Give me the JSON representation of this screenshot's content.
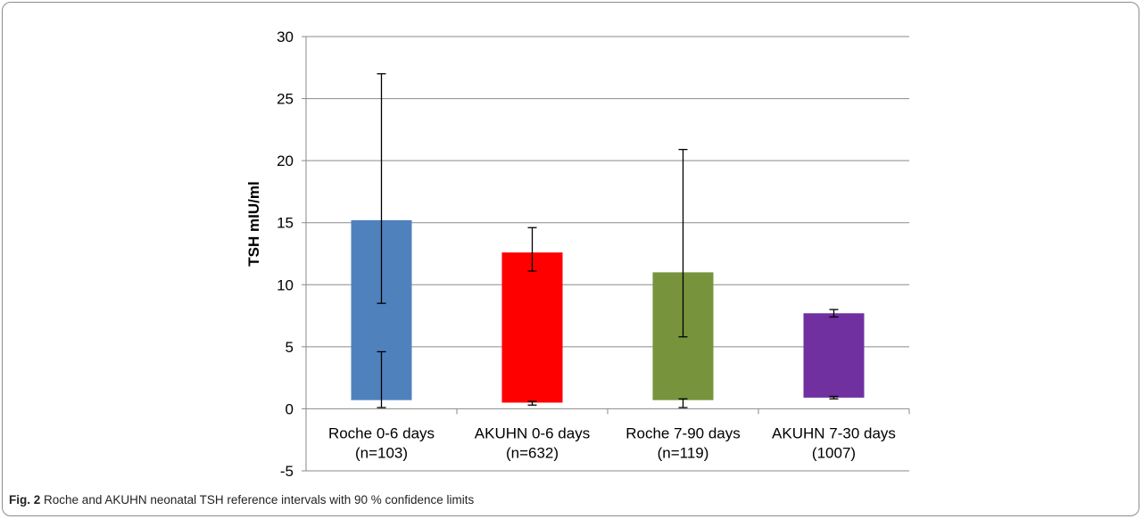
{
  "figure": {
    "label": "Fig. 2",
    "caption": "Roche and AKUHN neonatal TSH reference intervals with 90 % confidence limits"
  },
  "chart_data": {
    "type": "bar",
    "title": "",
    "xlabel": "",
    "ylabel": "TSH mIU/ml",
    "ylim": [
      -5,
      30
    ],
    "yticks": [
      -5,
      0,
      5,
      10,
      15,
      20,
      25,
      30
    ],
    "grid": true,
    "categories": [
      {
        "line1": "Roche 0-6 days",
        "line2": "(n=103)"
      },
      {
        "line1": "AKUHN 0-6 days",
        "line2": "(n=632)"
      },
      {
        "line1": "Roche 7-90 days",
        "line2": "(n=119)"
      },
      {
        "line1": "AKUHN 7-30 days",
        "line2": "(1007)"
      }
    ],
    "bars": [
      {
        "low": 0.7,
        "high": 15.2,
        "color": "#4f81bd",
        "upper_ci": [
          8.5,
          27.0
        ],
        "lower_ci": [
          0.1,
          4.6
        ]
      },
      {
        "low": 0.5,
        "high": 12.6,
        "color": "#ff0000",
        "upper_ci": [
          11.1,
          14.6
        ],
        "lower_ci": [
          0.3,
          0.6
        ]
      },
      {
        "low": 0.7,
        "high": 11.0,
        "color": "#77933c",
        "upper_ci": [
          5.8,
          20.9
        ],
        "lower_ci": [
          0.1,
          0.8
        ]
      },
      {
        "low": 0.9,
        "high": 7.7,
        "color": "#7030a0",
        "upper_ci": [
          7.4,
          8.0
        ],
        "lower_ci": [
          0.8,
          1.0
        ]
      }
    ]
  }
}
